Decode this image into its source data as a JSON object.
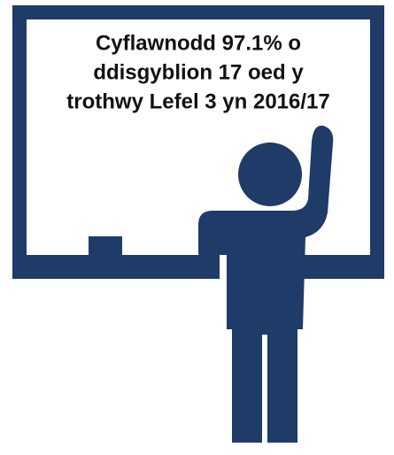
{
  "caption": {
    "lines": [
      "Cyflawnodd 97.1% o",
      "ddisgyblion 17 oed y",
      "trothwy Lefel 3 yn 2016/17"
    ]
  }
}
